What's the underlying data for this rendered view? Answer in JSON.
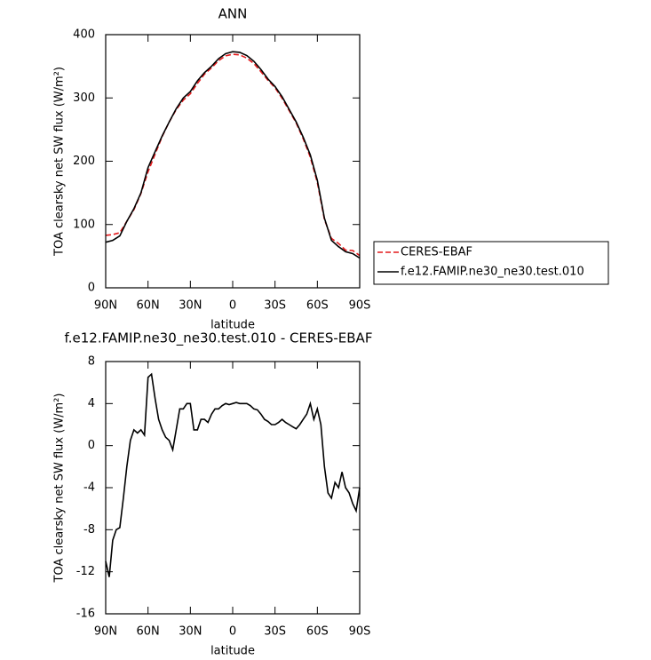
{
  "chart_data": [
    {
      "type": "line",
      "title": "ANN",
      "xlabel": "latitude",
      "ylabel": "TOA clearsky net SW flux (W/m²)",
      "x": [
        90,
        85,
        80,
        75,
        70,
        65,
        60,
        55,
        50,
        45,
        40,
        35,
        30,
        25,
        20,
        15,
        10,
        5,
        0,
        -5,
        -10,
        -15,
        -20,
        -25,
        -30,
        -35,
        -40,
        -45,
        -50,
        -55,
        -60,
        -65,
        -70,
        -75,
        -80,
        -85,
        -90
      ],
      "xlim": [
        90,
        -90
      ],
      "xticks": [
        {
          "value": 90,
          "label": "90N"
        },
        {
          "value": 60,
          "label": "60N"
        },
        {
          "value": 30,
          "label": "30N"
        },
        0,
        {
          "value": -30,
          "label": "30S"
        },
        {
          "value": -60,
          "label": "60S"
        },
        {
          "value": -90,
          "label": "90S"
        }
      ],
      "ylim": [
        0,
        400
      ],
      "yticks": [
        0,
        100,
        200,
        300,
        400
      ],
      "legend": "right",
      "series": [
        {
          "name": "CERES-EBAF",
          "color": "#e41a1c",
          "linestyle": "dashed",
          "values": [
            83,
            84,
            87,
            105,
            123.5,
            149,
            183.5,
            211,
            239,
            262,
            281.5,
            296.5,
            306.5,
            323,
            337.5,
            347.5,
            359,
            366.5,
            369,
            368,
            363,
            354.5,
            341.5,
            328,
            316,
            299.5,
            280,
            260.5,
            235.5,
            206.5,
            166.5,
            108,
            78,
            70,
            59.5,
            59,
            51
          ]
        },
        {
          "name": "f.e12.FAMIP.ne30_ne30.test.010",
          "color": "#000000",
          "linestyle": "solid",
          "values": [
            72,
            75,
            82,
            105,
            125,
            150,
            190,
            215,
            240,
            262,
            283,
            300,
            310,
            327,
            340,
            350,
            362,
            370,
            373,
            372,
            367,
            358,
            345,
            330,
            318,
            302,
            282,
            262,
            238,
            210,
            170,
            110,
            75,
            65,
            57,
            54,
            47
          ]
        }
      ]
    },
    {
      "type": "line",
      "title": "f.e12.FAMIP.ne30_ne30.test.010 - CERES-EBAF",
      "xlabel": "latitude",
      "ylabel": "TOA clearsky net SW flux (W/m²)",
      "x": [
        90,
        87.5,
        85,
        82.5,
        80,
        77.5,
        75,
        72.5,
        70,
        67.5,
        65,
        62.5,
        60,
        57.5,
        55,
        52.5,
        50,
        47.5,
        45,
        42.5,
        40,
        37.5,
        35,
        32.5,
        30,
        27.5,
        25,
        22.5,
        20,
        17.5,
        15,
        12.5,
        10,
        7.5,
        5,
        2.5,
        0,
        -2.5,
        -5,
        -7.5,
        -10,
        -12.5,
        -15,
        -17.5,
        -20,
        -22.5,
        -25,
        -27.5,
        -30,
        -32.5,
        -35,
        -37.5,
        -40,
        -42.5,
        -45,
        -47.5,
        -50,
        -52.5,
        -55,
        -57.5,
        -60,
        -62.5,
        -65,
        -67.5,
        -70,
        -72.5,
        -75,
        -77.5,
        -80,
        -82.5,
        -85,
        -87.5,
        -90
      ],
      "xlim": [
        90,
        -90
      ],
      "xticks": [
        {
          "value": 90,
          "label": "90N"
        },
        {
          "value": 60,
          "label": "60N"
        },
        {
          "value": 30,
          "label": "30N"
        },
        0,
        {
          "value": -30,
          "label": "30S"
        },
        {
          "value": -60,
          "label": "60S"
        },
        {
          "value": -90,
          "label": "90S"
        }
      ],
      "ylim": [
        -16,
        8
      ],
      "yticks": [
        -16,
        -12,
        -8,
        -4,
        0,
        4,
        8
      ],
      "color": "#000000",
      "values": [
        -11,
        -12.5,
        -9,
        -8,
        -7.8,
        -5,
        -2,
        0.5,
        1.5,
        1.2,
        1.5,
        1,
        6.5,
        6.8,
        4.5,
        2.5,
        1.5,
        0.8,
        0.5,
        -0.4,
        1.5,
        3.5,
        3.5,
        4,
        4,
        1.5,
        1.5,
        2.5,
        2.5,
        2.2,
        3,
        3.5,
        3.5,
        3.8,
        4,
        3.9,
        4,
        4.1,
        4,
        4,
        4,
        3.8,
        3.5,
        3.4,
        3,
        2.5,
        2.3,
        2,
        2,
        2.2,
        2.5,
        2.2,
        2,
        1.8,
        1.6,
        2,
        2.5,
        3,
        4,
        2.5,
        3.5,
        2,
        -2,
        -4.5,
        -5,
        -3.5,
        -4,
        -2.5,
        -4,
        -4.5,
        -5.5,
        -6.2,
        -4
      ]
    }
  ]
}
